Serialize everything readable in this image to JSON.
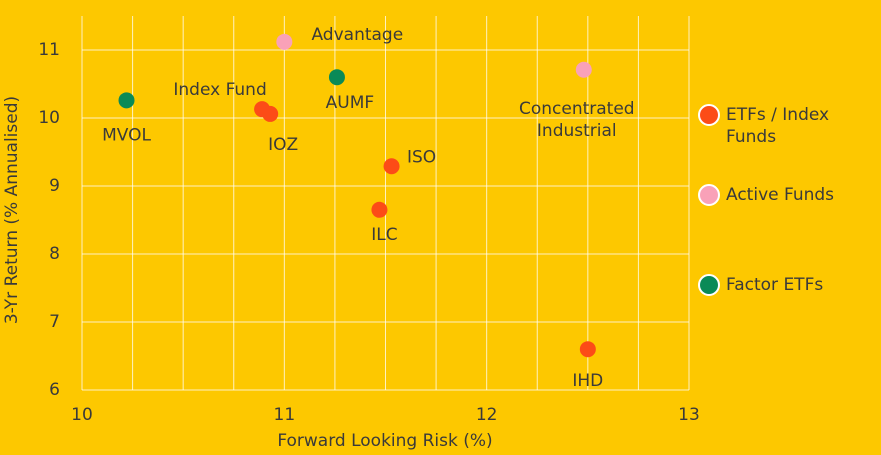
{
  "chart_data": {
    "type": "scatter",
    "x_label": "Forward Looking Risk (%)",
    "y_label": "3-Yr Return (% Annualised)",
    "xlim": [
      10,
      13
    ],
    "ylim": [
      6,
      11.5
    ],
    "xticks": [
      10,
      11,
      12,
      13
    ],
    "x_minor_grid": [
      10.25,
      10.5,
      10.75,
      11.25,
      11.5,
      11.75,
      12.25,
      12.5,
      12.75
    ],
    "yticks": [
      6,
      7,
      8,
      9,
      10,
      11
    ],
    "grid": true,
    "legend_position": "right",
    "series": [
      {
        "name": "ETFs / Index Funds",
        "color": "#fc4c17",
        "labels": [
          "Index Fund",
          "IOZ",
          "ISO",
          "ILC",
          "IHD"
        ],
        "x": [
          10.89,
          10.93,
          11.53,
          11.47,
          12.5
        ],
        "y": [
          10.13,
          10.06,
          9.29,
          8.65,
          6.6
        ]
      },
      {
        "name": "Active Funds",
        "color": "#f9a1b8",
        "labels": [
          "Advantage",
          "Concentrated Industrial"
        ],
        "x": [
          11.0,
          12.48
        ],
        "y": [
          11.12,
          10.71
        ]
      },
      {
        "name": "Factor ETFs",
        "color": "#0a8a57",
        "labels": [
          "MVOL",
          "AUMF"
        ],
        "x": [
          10.22,
          11.26
        ],
        "y": [
          10.26,
          10.6
        ]
      }
    ]
  }
}
